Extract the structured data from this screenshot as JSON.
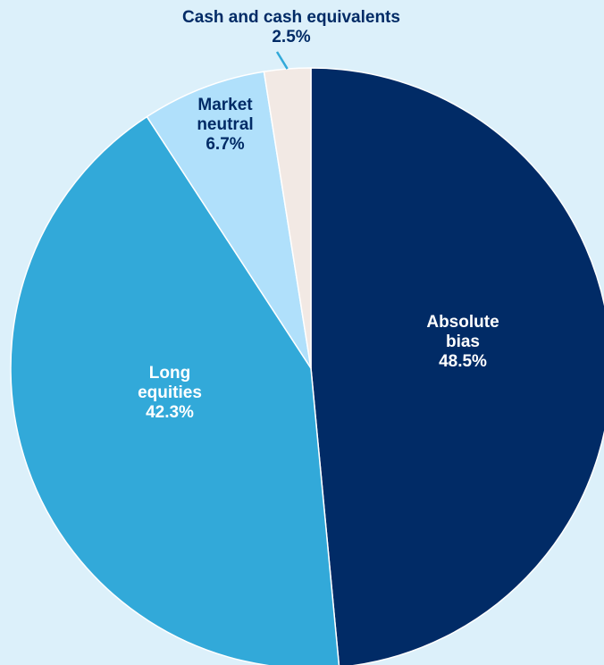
{
  "chart_data": {
    "type": "pie",
    "slices": [
      {
        "label": [
          "Absolute",
          "bias"
        ],
        "value": 48.5,
        "value_label": "48.5%",
        "color": "#012b66",
        "text_color": "#ffffff"
      },
      {
        "label": [
          "Long",
          "equities"
        ],
        "value": 42.3,
        "value_label": "42.3%",
        "color": "#32a9d9",
        "text_color": "#ffffff"
      },
      {
        "label": [
          "Market",
          "neutral"
        ],
        "value": 6.7,
        "value_label": "6.7%",
        "color": "#b0e0fb",
        "text_color": "#012b66"
      },
      {
        "label": [
          "Cash and cash equivalents"
        ],
        "value": 2.5,
        "value_label": "2.5%",
        "color": "#f2e9e4",
        "text_color": "#012b66"
      }
    ],
    "start_angle_deg": 0,
    "direction": "clockwise",
    "legend": "none",
    "background": "#dcf0fa",
    "leader_line_color": "#32a9d9"
  }
}
